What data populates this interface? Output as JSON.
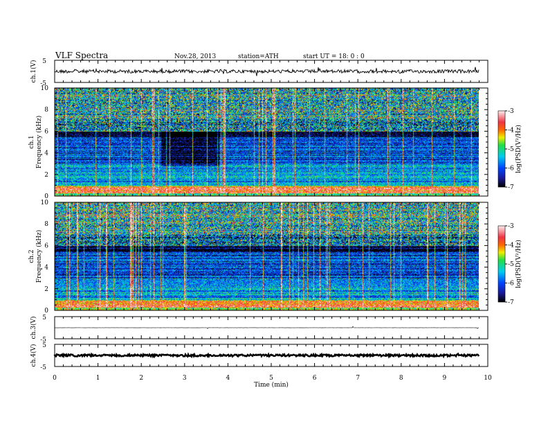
{
  "header": {
    "title": "VLF  Spectra",
    "date": "Nov.28, 2013",
    "station": "station=ATH",
    "start": "start  UT =    18: 0  : 0"
  },
  "chart_data": [
    {
      "type": "line",
      "panel": "ch1-waveform",
      "ylabel": "ch.1(V)",
      "ylim": [
        -5,
        5
      ],
      "ytick_labels": [
        "5",
        "-5"
      ],
      "baseline": 0,
      "series": [
        {
          "values": [
            0
          ]
        }
      ]
    },
    {
      "type": "heatmap",
      "panel": "ch1-spectrogram",
      "ylabel_top": "ch.1",
      "ylabel": "Frequency  (kHz)",
      "ylim": [
        0,
        10
      ],
      "ytick_labels": [
        "0",
        "2",
        "4",
        "6",
        "8",
        "10"
      ],
      "colorbar": {
        "label": "log(PSD(V²/Hz)",
        "ticks": [
          "-3",
          "-4",
          "-5",
          "-6",
          "-7"
        ],
        "range": [
          -7,
          -3
        ]
      },
      "quiet_interval_min": [
        2.45,
        3.8
      ]
    },
    {
      "type": "heatmap",
      "panel": "ch2-spectrogram",
      "ylabel_top": "ch.2",
      "ylabel": "Frequency  (kHz)",
      "ylim": [
        0,
        10
      ],
      "ytick_labels": [
        "0",
        "2",
        "4",
        "6",
        "8",
        "10"
      ],
      "colorbar": {
        "label": "log(PSD(V²/Hz)",
        "ticks": [
          "-3",
          "-4",
          "-5",
          "-6",
          "-7"
        ],
        "range": [
          -7,
          -3
        ]
      }
    },
    {
      "type": "line",
      "panel": "ch3-waveform",
      "ylabel": "ch.3(V)",
      "ylim": [
        -5,
        5
      ],
      "ytick_labels": [
        "5",
        "-5"
      ],
      "series": [
        {
          "values": [
            0
          ]
        }
      ]
    },
    {
      "type": "line",
      "panel": "ch4-waveform",
      "ylabel": "ch.4(V)",
      "ylim": [
        -5,
        5
      ],
      "ytick_labels": [
        "5",
        "-5"
      ],
      "series": [
        {
          "values": [
            0
          ]
        }
      ]
    }
  ],
  "x_axis": {
    "xlabel": "Time  (min)",
    "xlim": [
      0,
      10
    ],
    "data_end": 9.8,
    "tick_labels": [
      "0",
      "1",
      "2",
      "3",
      "4",
      "5",
      "6",
      "7",
      "8",
      "9",
      "10"
    ]
  }
}
